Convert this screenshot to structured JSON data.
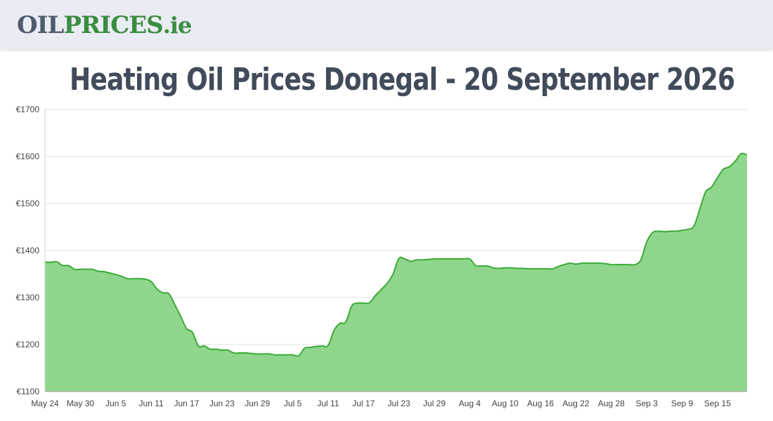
{
  "header": {
    "logo_oil": "OIL",
    "logo_prices": "PRICES",
    "logo_ie": ".ie"
  },
  "page_title": "Heating Oil Prices Donegal - 20 September 2026",
  "colors": {
    "line": "#3aaa35",
    "fill": "#8fd68c",
    "grid": "#e0e0e0",
    "header_bg": "#e9ecf3",
    "title": "#414b5a",
    "logo_dark": "#4f5b6e",
    "logo_green": "#3b8d3f"
  },
  "chart_data": {
    "type": "area",
    "title": "",
    "xlabel": "",
    "ylabel": "",
    "ylim": [
      1100,
      1700
    ],
    "y_ticks": [
      "€1100",
      "€1200",
      "€1300",
      "€1400",
      "€1500",
      "€1600",
      "€1700"
    ],
    "y_tick_values": [
      1100,
      1200,
      1300,
      1400,
      1500,
      1600,
      1700
    ],
    "x_start": "May 24",
    "x_tick_labels": [
      "May 24",
      "May 30",
      "Jun 5",
      "Jun 11",
      "Jun 17",
      "Jun 23",
      "Jun 29",
      "Jul 5",
      "Jul 11",
      "Jul 17",
      "Jul 23",
      "Jul 29",
      "Aug 4",
      "Aug 10",
      "Aug 16",
      "Aug 22",
      "Aug 28",
      "Sep 3",
      "Sep 9",
      "Sep 15"
    ],
    "grid": true,
    "legend": "none",
    "series": [
      {
        "x": [
          "May 24",
          "May 25",
          "May 26",
          "May 27",
          "May 28",
          "May 29",
          "May 30",
          "May 31",
          "Jun 1",
          "Jun 2",
          "Jun 3",
          "Jun 4",
          "Jun 5",
          "Jun 6",
          "Jun 7",
          "Jun 8",
          "Jun 9",
          "Jun 10",
          "Jun 11",
          "Jun 12",
          "Jun 13",
          "Jun 14",
          "Jun 15",
          "Jun 16",
          "Jun 17",
          "Jun 18",
          "Jun 19",
          "Jun 20",
          "Jun 21",
          "Jun 22",
          "Jun 23",
          "Jun 24",
          "Jun 25",
          "Jun 26",
          "Jun 27",
          "Jun 28",
          "Jun 29",
          "Jun 30",
          "Jul 1",
          "Jul 2",
          "Jul 3",
          "Jul 4",
          "Jul 5",
          "Jul 6",
          "Jul 7",
          "Jul 8",
          "Jul 9",
          "Jul 10",
          "Jul 11",
          "Jul 12",
          "Jul 13",
          "Jul 14",
          "Jul 15",
          "Jul 16",
          "Jul 17",
          "Jul 18",
          "Jul 19",
          "Jul 20",
          "Jul 21",
          "Jul 22",
          "Jul 23",
          "Jul 24",
          "Jul 25",
          "Jul 26",
          "Jul 27",
          "Jul 28",
          "Jul 29",
          "Jul 30",
          "Jul 31",
          "Aug 1",
          "Aug 2",
          "Aug 3",
          "Aug 4",
          "Aug 5",
          "Aug 6",
          "Aug 7",
          "Aug 8",
          "Aug 9",
          "Aug 10",
          "Aug 11",
          "Aug 12",
          "Aug 13",
          "Aug 14",
          "Aug 15",
          "Aug 16",
          "Aug 17",
          "Aug 18",
          "Aug 19",
          "Aug 20",
          "Aug 21",
          "Aug 22",
          "Aug 23",
          "Aug 24",
          "Aug 25",
          "Aug 26",
          "Aug 27",
          "Aug 28",
          "Aug 29",
          "Aug 30",
          "Aug 31",
          "Sep 1",
          "Sep 2",
          "Sep 3",
          "Sep 4",
          "Sep 5",
          "Sep 6",
          "Sep 7",
          "Sep 8",
          "Sep 9",
          "Sep 10",
          "Sep 11",
          "Sep 12",
          "Sep 13",
          "Sep 14",
          "Sep 15",
          "Sep 16",
          "Sep 17",
          "Sep 18",
          "Sep 19",
          "Sep 20"
        ],
        "values": [
          1375,
          1375,
          1376,
          1368,
          1368,
          1360,
          1360,
          1360,
          1360,
          1356,
          1355,
          1352,
          1349,
          1345,
          1340,
          1340,
          1340,
          1339,
          1334,
          1318,
          1310,
          1308,
          1285,
          1260,
          1234,
          1226,
          1197,
          1197,
          1190,
          1190,
          1188,
          1188,
          1182,
          1182,
          1182,
          1181,
          1180,
          1180,
          1180,
          1178,
          1178,
          1178,
          1178,
          1176,
          1192,
          1194,
          1196,
          1197,
          1198,
          1230,
          1245,
          1248,
          1282,
          1288,
          1288,
          1289,
          1304,
          1317,
          1330,
          1350,
          1383,
          1382,
          1377,
          1380,
          1380,
          1381,
          1382,
          1382,
          1382,
          1382,
          1382,
          1382,
          1382,
          1368,
          1367,
          1367,
          1363,
          1362,
          1363,
          1363,
          1362,
          1362,
          1361,
          1361,
          1361,
          1361,
          1361,
          1366,
          1370,
          1373,
          1371,
          1373,
          1373,
          1373,
          1373,
          1372,
          1370,
          1370,
          1370,
          1370,
          1370,
          1380,
          1418,
          1438,
          1441,
          1440,
          1441,
          1441,
          1443,
          1445,
          1452,
          1488,
          1525,
          1535,
          1555,
          1573,
          1578,
          1590,
          1606,
          1603
        ]
      }
    ]
  }
}
